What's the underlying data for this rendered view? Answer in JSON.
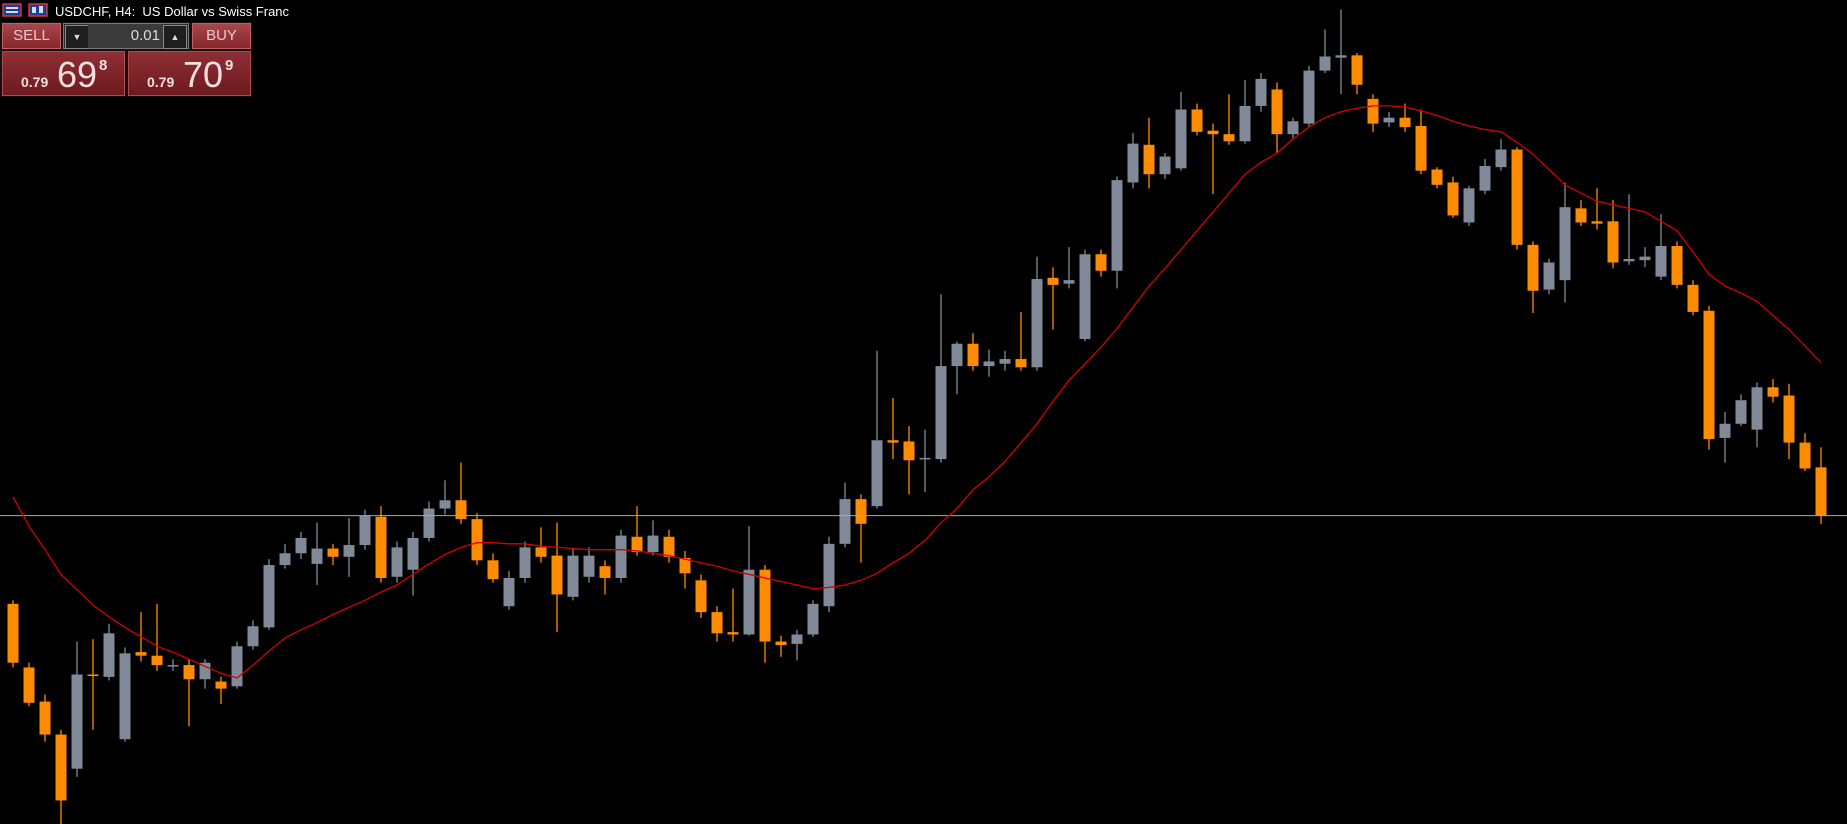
{
  "window": {
    "title": "USDCHF, H4:  US Dollar vs Swiss Franc"
  },
  "trade_panel": {
    "sell_label": "SELL",
    "buy_label": "BUY",
    "volume": "0.01",
    "sell_price": {
      "prefix": "0.79",
      "big": "69",
      "small": "8"
    },
    "buy_price": {
      "prefix": "0.79",
      "big": "70",
      "small": "9"
    }
  },
  "chart_data": {
    "type": "candlestick",
    "up_color": "#808a99",
    "down_color": "#ff8c00",
    "background": "#000000",
    "ylim": [
      0.78388,
      0.81888
    ],
    "bid_line": 0.79698,
    "bid_line_color": "#a9a9a9",
    "open": [
      0.79323,
      0.79053,
      0.78908,
      0.78768,
      0.78623,
      0.79023,
      0.79013,
      0.78748,
      0.79118,
      0.79103,
      0.79058,
      0.79063,
      0.79003,
      0.78993,
      0.78973,
      0.79143,
      0.79223,
      0.79488,
      0.79538,
      0.79493,
      0.79558,
      0.79523,
      0.79573,
      0.79693,
      0.79438,
      0.79468,
      0.79603,
      0.79728,
      0.79763,
      0.79683,
      0.79508,
      0.79313,
      0.79433,
      0.79563,
      0.79528,
      0.79353,
      0.79438,
      0.79483,
      0.79433,
      0.79608,
      0.79543,
      0.79608,
      0.79518,
      0.79423,
      0.79288,
      0.79203,
      0.79193,
      0.79468,
      0.79163,
      0.79153,
      0.79193,
      0.79313,
      0.79578,
      0.79768,
      0.79738,
      0.80018,
      0.80013,
      0.79938,
      0.79938,
      0.80333,
      0.80428,
      0.80333,
      0.80343,
      0.80363,
      0.80328,
      0.80708,
      0.80683,
      0.80448,
      0.80808,
      0.80738,
      0.81113,
      0.81273,
      0.81148,
      0.81173,
      0.81423,
      0.81333,
      0.81318,
      0.81288,
      0.81438,
      0.81508,
      0.81318,
      0.81363,
      0.81588,
      0.81643,
      0.81653,
      0.81468,
      0.81368,
      0.81388,
      0.81353,
      0.81168,
      0.81113,
      0.80943,
      0.81078,
      0.81178,
      0.81253,
      0.80848,
      0.80658,
      0.80698,
      0.81003,
      0.80948,
      0.80948,
      0.80778,
      0.80783,
      0.80713,
      0.80843,
      0.80678,
      0.80568,
      0.80028,
      0.80088,
      0.80063,
      0.80243,
      0.80208,
      0.80008,
      0.79903
    ],
    "high": [
      0.79338,
      0.79073,
      0.78938,
      0.78788,
      0.79163,
      0.79173,
      0.79238,
      0.79138,
      0.79288,
      0.79323,
      0.79088,
      0.79088,
      0.79088,
      0.79013,
      0.79163,
      0.79253,
      0.79513,
      0.79578,
      0.79628,
      0.79668,
      0.79578,
      0.79688,
      0.79723,
      0.79738,
      0.79588,
      0.79628,
      0.79758,
      0.79848,
      0.79923,
      0.79708,
      0.79538,
      0.79463,
      0.79588,
      0.79648,
      0.79668,
      0.79558,
      0.79563,
      0.79508,
      0.79638,
      0.79738,
      0.79678,
      0.79638,
      0.79548,
      0.79448,
      0.79313,
      0.79388,
      0.79653,
      0.79488,
      0.79188,
      0.79213,
      0.79338,
      0.79608,
      0.79838,
      0.79788,
      0.80398,
      0.80198,
      0.80078,
      0.80063,
      0.80638,
      0.80438,
      0.80473,
      0.80403,
      0.80398,
      0.80563,
      0.80798,
      0.80753,
      0.80838,
      0.80828,
      0.80828,
      0.81138,
      0.81323,
      0.81388,
      0.81238,
      0.81498,
      0.81448,
      0.81363,
      0.81488,
      0.81548,
      0.81578,
      0.81538,
      0.81388,
      0.81608,
      0.81763,
      0.81848,
      0.81663,
      0.81488,
      0.81413,
      0.81448,
      0.81423,
      0.81178,
      0.81138,
      0.81098,
      0.81213,
      0.81298,
      0.81263,
      0.80863,
      0.80788,
      0.81113,
      0.81038,
      0.81088,
      0.81038,
      0.81063,
      0.80838,
      0.80978,
      0.80863,
      0.80698,
      0.80588,
      0.80138,
      0.80213,
      0.80263,
      0.80278,
      0.80258,
      0.80048,
      0.79988
    ],
    "low": [
      0.79053,
      0.78888,
      0.78738,
      0.78388,
      0.78588,
      0.78788,
      0.78998,
      0.78738,
      0.79078,
      0.79038,
      0.79038,
      0.78803,
      0.78963,
      0.78898,
      0.78963,
      0.79128,
      0.79213,
      0.79473,
      0.79513,
      0.79403,
      0.79488,
      0.79438,
      0.79553,
      0.79413,
      0.79413,
      0.79358,
      0.79588,
      0.79703,
      0.79663,
      0.79488,
      0.79413,
      0.79298,
      0.79413,
      0.79498,
      0.79203,
      0.79338,
      0.79413,
      0.79363,
      0.79413,
      0.79528,
      0.79528,
      0.79498,
      0.79388,
      0.79263,
      0.79163,
      0.79163,
      0.79188,
      0.79073,
      0.79098,
      0.79083,
      0.79183,
      0.79288,
      0.79563,
      0.79498,
      0.79728,
      0.79938,
      0.79788,
      0.79798,
      0.79923,
      0.80213,
      0.80313,
      0.80288,
      0.80313,
      0.80313,
      0.80313,
      0.80488,
      0.80663,
      0.80438,
      0.80713,
      0.80663,
      0.81088,
      0.81088,
      0.81128,
      0.81163,
      0.81313,
      0.81063,
      0.81273,
      0.81278,
      0.81413,
      0.81238,
      0.81298,
      0.81348,
      0.81578,
      0.81488,
      0.81488,
      0.81328,
      0.81348,
      0.81328,
      0.81148,
      0.81088,
      0.80963,
      0.80928,
      0.81063,
      0.81163,
      0.80828,
      0.80558,
      0.80638,
      0.80603,
      0.80928,
      0.80913,
      0.80748,
      0.80763,
      0.80753,
      0.80698,
      0.80663,
      0.80548,
      0.79978,
      0.79923,
      0.80078,
      0.79988,
      0.80178,
      0.79938,
      0.79888,
      0.79663
    ],
    "close": [
      0.79073,
      0.78903,
      0.78768,
      0.78488,
      0.79023,
      0.79018,
      0.79198,
      0.79113,
      0.79103,
      0.79063,
      0.79063,
      0.79003,
      0.79073,
      0.78963,
      0.79143,
      0.79228,
      0.79488,
      0.79538,
      0.79603,
      0.79558,
      0.79523,
      0.79573,
      0.79698,
      0.79433,
      0.79563,
      0.79603,
      0.79728,
      0.79763,
      0.79683,
      0.79508,
      0.79428,
      0.79433,
      0.79563,
      0.79523,
      0.79363,
      0.79528,
      0.79528,
      0.79433,
      0.79613,
      0.79543,
      0.79613,
      0.79523,
      0.79453,
      0.79288,
      0.79198,
      0.79193,
      0.79468,
      0.79163,
      0.79148,
      0.79193,
      0.79323,
      0.79578,
      0.79768,
      0.79663,
      0.80018,
      0.80008,
      0.79933,
      0.79943,
      0.80333,
      0.80428,
      0.80333,
      0.80353,
      0.80363,
      0.80328,
      0.80703,
      0.80678,
      0.80698,
      0.80808,
      0.80738,
      0.81123,
      0.81278,
      0.81148,
      0.81223,
      0.81423,
      0.81328,
      0.81318,
      0.81288,
      0.81438,
      0.81553,
      0.81318,
      0.81373,
      0.81588,
      0.81648,
      0.81653,
      0.81528,
      0.81363,
      0.81388,
      0.81348,
      0.81163,
      0.81103,
      0.80973,
      0.81088,
      0.81183,
      0.81253,
      0.80848,
      0.80653,
      0.80773,
      0.81008,
      0.80943,
      0.80938,
      0.80773,
      0.80788,
      0.80798,
      0.80843,
      0.80678,
      0.80563,
      0.80023,
      0.80088,
      0.80188,
      0.80243,
      0.80203,
      0.80008,
      0.79898,
      0.79698
    ],
    "moving_average": {
      "color": "#d40000",
      "values": [
        0.79778,
        0.79653,
        0.79553,
        0.79448,
        0.79383,
        0.79318,
        0.79268,
        0.79223,
        0.79183,
        0.79143,
        0.79118,
        0.79088,
        0.79058,
        0.79028,
        0.79008,
        0.79063,
        0.79123,
        0.79178,
        0.79213,
        0.79243,
        0.79278,
        0.79308,
        0.79338,
        0.79373,
        0.79403,
        0.79448,
        0.79493,
        0.79533,
        0.79563,
        0.79583,
        0.79583,
        0.79578,
        0.79578,
        0.79568,
        0.79563,
        0.79558,
        0.79553,
        0.79553,
        0.79553,
        0.79548,
        0.79538,
        0.79528,
        0.79513,
        0.79498,
        0.79483,
        0.79463,
        0.79448,
        0.79433,
        0.79418,
        0.79403,
        0.79388,
        0.79393,
        0.79403,
        0.79423,
        0.79453,
        0.79498,
        0.79538,
        0.79593,
        0.79668,
        0.79728,
        0.79808,
        0.79863,
        0.79928,
        0.80008,
        0.80088,
        0.80183,
        0.80273,
        0.80343,
        0.80413,
        0.80493,
        0.80583,
        0.80673,
        0.80748,
        0.80828,
        0.80908,
        0.80988,
        0.81068,
        0.81148,
        0.81198,
        0.81238,
        0.81298,
        0.81348,
        0.81388,
        0.81413,
        0.81428,
        0.81438,
        0.81438,
        0.81433,
        0.81418,
        0.81398,
        0.81373,
        0.81353,
        0.81338,
        0.81328,
        0.81283,
        0.81233,
        0.81168,
        0.81103,
        0.81068,
        0.81033,
        0.81018,
        0.81003,
        0.80988,
        0.80948,
        0.80908,
        0.80818,
        0.80723,
        0.80673,
        0.80643,
        0.80608,
        0.80548,
        0.80488,
        0.80418,
        0.80348
      ]
    }
  }
}
